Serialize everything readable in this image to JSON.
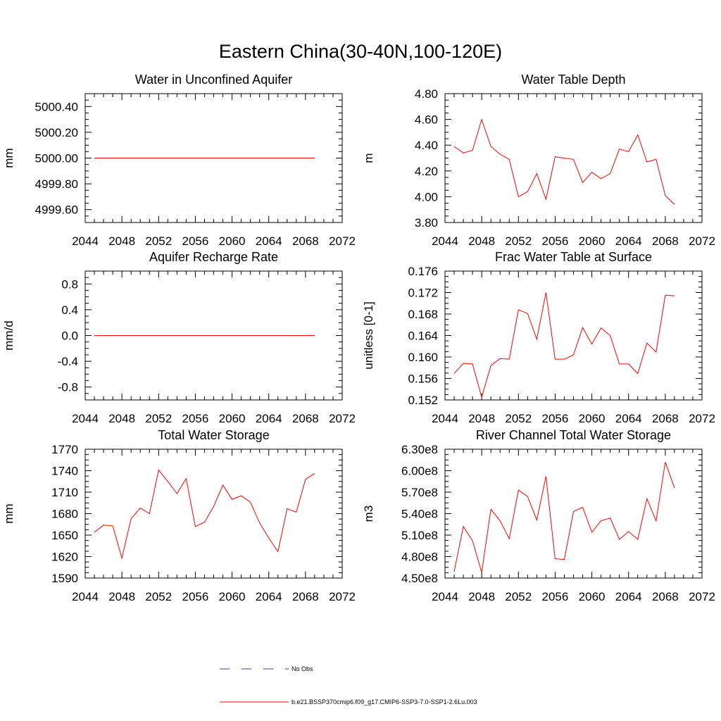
{
  "title": "Eastern China(30-40N,100-120E)",
  "colors": {
    "model": "#ff0000",
    "obs": "#3b3bb3",
    "axis": "#000000"
  },
  "legend": {
    "items": [
      {
        "label": "No Obs",
        "color": "#3b3bb3",
        "dashed": true
      },
      {
        "label": "b.e21.BSSP370cmip6.f09_g17.CMIP6-SSP3-7.0-SSP1-2.6Lu.003",
        "color": "#ff0000",
        "dashed": false
      }
    ]
  },
  "chart_data": [
    {
      "type": "line",
      "title": "Water in Unconfined Aquifer",
      "ylabel": "mm",
      "xlim": [
        2044,
        2072
      ],
      "ylim": [
        4999.5,
        5000.5
      ],
      "xticks": [
        2044,
        2048,
        2052,
        2056,
        2060,
        2064,
        2068,
        2072
      ],
      "xtick_labels": [
        "2044",
        "2048",
        "2052",
        "2056",
        "2060",
        "2064",
        "2068",
        "2072"
      ],
      "yticks": [
        4999.6,
        4999.8,
        5000.0,
        5000.2,
        5000.4
      ],
      "ytick_labels": [
        "4999.60",
        "4999.80",
        "5000.00",
        "5000.20",
        "5000.40"
      ],
      "x": [
        2045,
        2046,
        2047,
        2048,
        2049,
        2050,
        2051,
        2052,
        2053,
        2054,
        2055,
        2056,
        2057,
        2058,
        2059,
        2060,
        2061,
        2062,
        2063,
        2064,
        2065,
        2066,
        2067,
        2068,
        2069
      ],
      "series": [
        {
          "values": [
            5000.0,
            5000.0,
            5000.0,
            5000.0,
            5000.0,
            5000.0,
            5000.0,
            5000.0,
            5000.0,
            5000.0,
            5000.0,
            5000.0,
            5000.0,
            5000.0,
            5000.0,
            5000.0,
            5000.0,
            5000.0,
            5000.0,
            5000.0,
            5000.0,
            5000.0,
            5000.0,
            5000.0,
            5000.0
          ]
        }
      ]
    },
    {
      "type": "line",
      "title": "Water Table Depth",
      "ylabel": "m",
      "xlim": [
        2044,
        2072
      ],
      "ylim": [
        3.8,
        4.8
      ],
      "xticks": [
        2044,
        2048,
        2052,
        2056,
        2060,
        2064,
        2068,
        2072
      ],
      "xtick_labels": [
        "2044",
        "2048",
        "2052",
        "2056",
        "2060",
        "2064",
        "2068",
        "2072"
      ],
      "yticks": [
        3.8,
        4.0,
        4.2,
        4.4,
        4.6,
        4.8
      ],
      "ytick_labels": [
        "3.80",
        "4.00",
        "4.20",
        "4.40",
        "4.60",
        "4.80"
      ],
      "x": [
        2045,
        2046,
        2047,
        2048,
        2049,
        2050,
        2051,
        2052,
        2053,
        2054,
        2055,
        2056,
        2057,
        2058,
        2059,
        2060,
        2061,
        2062,
        2063,
        2064,
        2065,
        2066,
        2067,
        2068,
        2069
      ],
      "series": [
        {
          "values": [
            4.39,
            4.34,
            4.36,
            4.6,
            4.39,
            4.33,
            4.29,
            4.0,
            4.04,
            4.18,
            3.98,
            4.31,
            4.3,
            4.29,
            4.11,
            4.19,
            4.14,
            4.18,
            4.37,
            4.35,
            4.48,
            4.27,
            4.29,
            4.01,
            3.94
          ]
        }
      ]
    },
    {
      "type": "line",
      "title": "Aquifer Recharge Rate",
      "ylabel": "mm/d",
      "xlim": [
        2044,
        2072
      ],
      "ylim": [
        -1.0,
        1.0
      ],
      "xticks": [
        2044,
        2048,
        2052,
        2056,
        2060,
        2064,
        2068,
        2072
      ],
      "xtick_labels": [
        "2044",
        "2048",
        "2052",
        "2056",
        "2060",
        "2064",
        "2068",
        "2072"
      ],
      "yticks": [
        -0.8,
        -0.4,
        0.0,
        0.4,
        0.8
      ],
      "ytick_labels": [
        "-0.8",
        "-0.4",
        "0.0",
        "0.4",
        "0.8"
      ],
      "x": [
        2045,
        2046,
        2047,
        2048,
        2049,
        2050,
        2051,
        2052,
        2053,
        2054,
        2055,
        2056,
        2057,
        2058,
        2059,
        2060,
        2061,
        2062,
        2063,
        2064,
        2065,
        2066,
        2067,
        2068,
        2069
      ],
      "series": [
        {
          "values": [
            0,
            0,
            0,
            0,
            0,
            0,
            0,
            0,
            0,
            0,
            0,
            0,
            0,
            0,
            0,
            0,
            0,
            0,
            0,
            0,
            0,
            0,
            0,
            0,
            0
          ]
        }
      ]
    },
    {
      "type": "line",
      "title": "Frac Water Table at Surface",
      "ylabel": "unitless [0-1]",
      "xlim": [
        2044,
        2072
      ],
      "ylim": [
        0.152,
        0.176
      ],
      "xticks": [
        2044,
        2048,
        2052,
        2056,
        2060,
        2064,
        2068,
        2072
      ],
      "xtick_labels": [
        "2044",
        "2048",
        "2052",
        "2056",
        "2060",
        "2064",
        "2068",
        "2072"
      ],
      "yticks": [
        0.152,
        0.156,
        0.16,
        0.164,
        0.168,
        0.172,
        0.176
      ],
      "ytick_labels": [
        "0.152",
        "0.156",
        "0.160",
        "0.164",
        "0.168",
        "0.172",
        "0.176"
      ],
      "x": [
        2045,
        2046,
        2047,
        2048,
        2049,
        2050,
        2051,
        2052,
        2053,
        2054,
        2055,
        2056,
        2057,
        2058,
        2059,
        2060,
        2061,
        2062,
        2063,
        2064,
        2065,
        2066,
        2067,
        2068,
        2069
      ],
      "series": [
        {
          "values": [
            0.1569,
            0.1588,
            0.1587,
            0.1525,
            0.1584,
            0.1597,
            0.1596,
            0.1688,
            0.1681,
            0.1633,
            0.172,
            0.1596,
            0.1596,
            0.1604,
            0.1655,
            0.1624,
            0.1654,
            0.164,
            0.1587,
            0.1587,
            0.1569,
            0.1626,
            0.1609,
            0.1715,
            0.1714
          ]
        }
      ]
    },
    {
      "type": "line",
      "title": "Total Water Storage",
      "ylabel": "mm",
      "xlim": [
        2044,
        2072
      ],
      "ylim": [
        1590,
        1770
      ],
      "xticks": [
        2044,
        2048,
        2052,
        2056,
        2060,
        2064,
        2068,
        2072
      ],
      "xtick_labels": [
        "2044",
        "2048",
        "2052",
        "2056",
        "2060",
        "2064",
        "2068",
        "2072"
      ],
      "yticks": [
        1590,
        1620,
        1650,
        1680,
        1710,
        1740,
        1770
      ],
      "ytick_labels": [
        "1590",
        "1620",
        "1650",
        "1680",
        "1710",
        "1740",
        "1770"
      ],
      "x": [
        2045,
        2046,
        2047,
        2048,
        2049,
        2050,
        2051,
        2052,
        2053,
        2054,
        2055,
        2056,
        2057,
        2058,
        2059,
        2060,
        2061,
        2062,
        2063,
        2064,
        2065,
        2066,
        2067,
        2068,
        2069
      ],
      "series": [
        {
          "values": [
            1654,
            1664,
            1663,
            1618,
            1673,
            1688,
            1680,
            1741,
            1725,
            1708,
            1729,
            1662,
            1668,
            1690,
            1720,
            1700,
            1705,
            1696,
            1667,
            1646,
            1627,
            1687,
            1682,
            1728,
            1736
          ]
        }
      ]
    },
    {
      "type": "line",
      "title": "River Channel Total Water Storage",
      "ylabel": "m3",
      "xlim": [
        2044,
        2072
      ],
      "ylim": [
        450000000,
        630000000
      ],
      "xticks": [
        2044,
        2048,
        2052,
        2056,
        2060,
        2064,
        2068,
        2072
      ],
      "xtick_labels": [
        "2044",
        "2048",
        "2052",
        "2056",
        "2060",
        "2064",
        "2068",
        "2072"
      ],
      "yticks": [
        450000000,
        480000000,
        510000000,
        540000000,
        570000000,
        600000000,
        630000000
      ],
      "ytick_labels": [
        "4.50e8",
        "4.80e8",
        "5.10e8",
        "5.40e8",
        "5.70e8",
        "6.00e8",
        "6.30e8"
      ],
      "x": [
        2045,
        2046,
        2047,
        2048,
        2049,
        2050,
        2051,
        2052,
        2053,
        2054,
        2055,
        2056,
        2057,
        2058,
        2059,
        2060,
        2061,
        2062,
        2063,
        2064,
        2065,
        2066,
        2067,
        2068,
        2069
      ],
      "series": [
        {
          "values": [
            459000000,
            522000000,
            502000000,
            458000000,
            546000000,
            530000000,
            505000000,
            573000000,
            564000000,
            531000000,
            592000000,
            477000000,
            476000000,
            543000000,
            549000000,
            514000000,
            530000000,
            534000000,
            504000000,
            515000000,
            504000000,
            561000000,
            530000000,
            612000000,
            576000000
          ]
        }
      ]
    }
  ]
}
